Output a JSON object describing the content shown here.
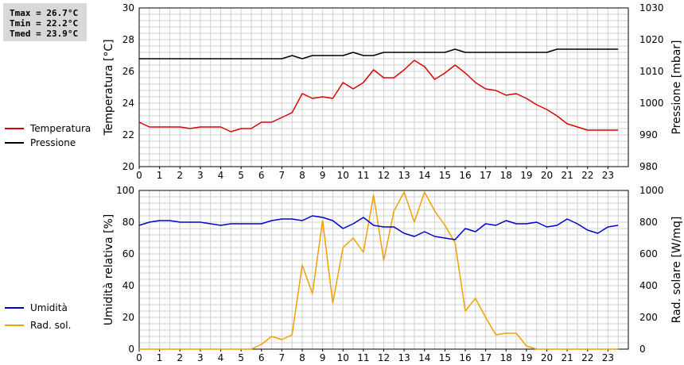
{
  "stats": {
    "tmax": "Tmax = 26.7°C",
    "tmin": "Tmin = 22.2°C",
    "tmed": "Tmed = 23.9°C"
  },
  "legend_top": [
    {
      "label": "Temperatura",
      "color": "#dd0000"
    },
    {
      "label": "Pressione",
      "color": "#000000"
    }
  ],
  "legend_bottom": [
    {
      "label": "Umidità",
      "color": "#0000cc"
    },
    {
      "label": "Rad. sol.",
      "color": "#f0a000"
    }
  ],
  "chart_data": [
    {
      "type": "line",
      "ylabel": "Temperatura [°C]",
      "y2label": "Pressione [mbar]",
      "xlim": [
        0,
        24
      ],
      "ylim": [
        20,
        30
      ],
      "y2lim": [
        980,
        1030
      ],
      "xticks": [
        "0",
        "1",
        "2",
        "3",
        "4",
        "5",
        "6",
        "7",
        "8",
        "9",
        "10",
        "11",
        "12",
        "13",
        "14",
        "15",
        "16",
        "17",
        "18",
        "19",
        "20",
        "21",
        "22",
        "23"
      ],
      "yticks": [
        "20",
        "22",
        "24",
        "26",
        "28",
        "30"
      ],
      "y2ticks": [
        "980",
        "990",
        "1000",
        "1010",
        "1020",
        "1030"
      ],
      "grid": true,
      "series": [
        {
          "name": "Temperatura",
          "axis": "left",
          "color": "#dd0000",
          "x": [
            0,
            0.5,
            1,
            1.5,
            2,
            2.5,
            3,
            3.5,
            4,
            4.5,
            5,
            5.5,
            6,
            6.5,
            7,
            7.5,
            8,
            8.5,
            9,
            9.5,
            10,
            10.5,
            11,
            11.5,
            12,
            12.5,
            13,
            13.5,
            14,
            14.5,
            15,
            15.5,
            16,
            16.5,
            17,
            17.5,
            18,
            18.5,
            19,
            19.5,
            20,
            20.5,
            21,
            21.5,
            22,
            22.5,
            23,
            23.5
          ],
          "y": [
            22.8,
            22.5,
            22.5,
            22.5,
            22.5,
            22.4,
            22.5,
            22.5,
            22.5,
            22.2,
            22.4,
            22.4,
            22.8,
            22.8,
            23.1,
            23.4,
            24.6,
            24.3,
            24.4,
            24.3,
            25.3,
            24.9,
            25.3,
            26.1,
            25.6,
            25.6,
            26.1,
            26.7,
            26.3,
            25.5,
            25.9,
            26.4,
            25.9,
            25.3,
            24.9,
            24.8,
            24.5,
            24.6,
            24.3,
            23.9,
            23.6,
            23.2,
            22.7,
            22.5,
            22.3,
            22.3,
            22.3,
            22.3
          ]
        },
        {
          "name": "Pressione",
          "axis": "right",
          "color": "#000000",
          "x": [
            0,
            0.5,
            1,
            1.5,
            2,
            2.5,
            3,
            3.5,
            4,
            4.5,
            5,
            5.5,
            6,
            6.5,
            7,
            7.5,
            8,
            8.5,
            9,
            9.5,
            10,
            10.5,
            11,
            11.5,
            12,
            12.5,
            13,
            13.5,
            14,
            14.5,
            15,
            15.5,
            16,
            16.5,
            17,
            17.5,
            18,
            18.5,
            19,
            19.5,
            20,
            20.5,
            21,
            21.5,
            22,
            22.5,
            23,
            23.5
          ],
          "y": [
            1014,
            1014,
            1014,
            1014,
            1014,
            1014,
            1014,
            1014,
            1014,
            1014,
            1014,
            1014,
            1014,
            1014,
            1014,
            1015,
            1014,
            1015,
            1015,
            1015,
            1015,
            1016,
            1015,
            1015,
            1016,
            1016,
            1016,
            1016,
            1016,
            1016,
            1016,
            1017,
            1016,
            1016,
            1016,
            1016,
            1016,
            1016,
            1016,
            1016,
            1016,
            1017,
            1017,
            1017,
            1017,
            1017,
            1017,
            1017
          ]
        }
      ]
    },
    {
      "type": "line",
      "ylabel": "Umidità relativa [%]",
      "y2label": "Rad. solare [W/mq]",
      "xlim": [
        0,
        24
      ],
      "ylim": [
        0,
        100
      ],
      "y2lim": [
        0,
        1000
      ],
      "xticks": [
        "0",
        "1",
        "2",
        "3",
        "4",
        "5",
        "6",
        "7",
        "8",
        "9",
        "10",
        "11",
        "12",
        "13",
        "14",
        "15",
        "16",
        "17",
        "18",
        "19",
        "20",
        "21",
        "22",
        "23"
      ],
      "yticks": [
        "0",
        "20",
        "40",
        "60",
        "80",
        "100"
      ],
      "y2ticks": [
        "0",
        "200",
        "400",
        "600",
        "800",
        "1000"
      ],
      "grid": true,
      "series": [
        {
          "name": "Umidità",
          "axis": "left",
          "color": "#0000cc",
          "x": [
            0,
            0.5,
            1,
            1.5,
            2,
            2.5,
            3,
            3.5,
            4,
            4.5,
            5,
            5.5,
            6,
            6.5,
            7,
            7.5,
            8,
            8.5,
            9,
            9.5,
            10,
            10.5,
            11,
            11.5,
            12,
            12.5,
            13,
            13.5,
            14,
            14.5,
            15,
            15.5,
            16,
            16.5,
            17,
            17.5,
            18,
            18.5,
            19,
            19.5,
            20,
            20.5,
            21,
            21.5,
            22,
            22.5,
            23,
            23.5
          ],
          "y": [
            78,
            80,
            81,
            81,
            80,
            80,
            80,
            79,
            78,
            79,
            79,
            79,
            79,
            81,
            82,
            82,
            81,
            84,
            83,
            81,
            76,
            79,
            83,
            78,
            77,
            77,
            73,
            71,
            74,
            71,
            70,
            69,
            76,
            74,
            79,
            78,
            81,
            79,
            79,
            80,
            77,
            78,
            82,
            79,
            75,
            73,
            77,
            78
          ]
        },
        {
          "name": "Rad. sol.",
          "axis": "right",
          "color": "#f0a000",
          "x": [
            0,
            0.5,
            1,
            1.5,
            2,
            2.5,
            3,
            3.5,
            4,
            4.5,
            5,
            5.5,
            6,
            6.5,
            7,
            7.5,
            8,
            8.5,
            9,
            9.5,
            10,
            10.5,
            11,
            11.5,
            12,
            12.5,
            13,
            13.5,
            14,
            14.5,
            15,
            15.5,
            16,
            16.5,
            17,
            17.5,
            18,
            18.5,
            19,
            19.5,
            20,
            20.5,
            21,
            21.5,
            22,
            22.5,
            23,
            23.5
          ],
          "y": [
            0,
            0,
            0,
            0,
            0,
            0,
            0,
            0,
            0,
            0,
            0,
            0,
            30,
            80,
            60,
            90,
            530,
            350,
            810,
            290,
            640,
            700,
            610,
            970,
            560,
            870,
            990,
            800,
            990,
            870,
            780,
            670,
            240,
            320,
            200,
            90,
            100,
            100,
            20,
            0,
            0,
            0,
            0,
            0,
            0,
            0,
            0,
            0
          ]
        }
      ]
    }
  ]
}
